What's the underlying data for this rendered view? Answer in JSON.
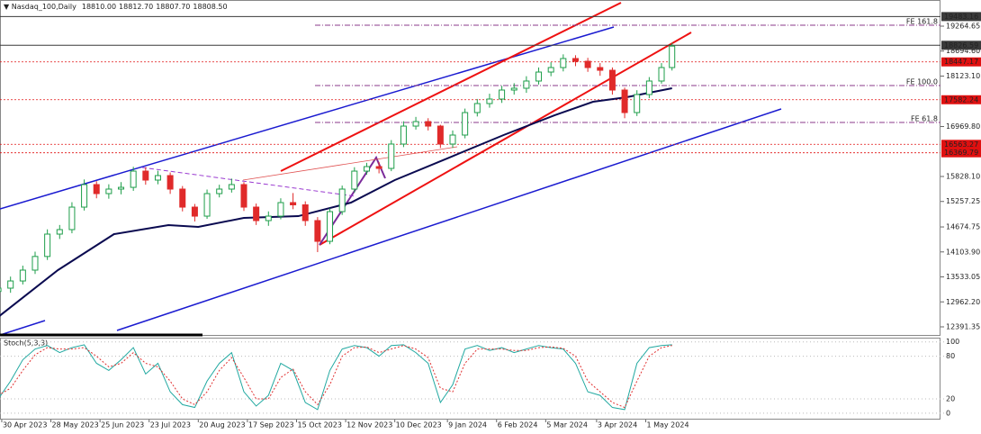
{
  "chart_data": {
    "type": "candlestick",
    "title": "Nasdaq_100,Daily",
    "last_bar": {
      "values": [
        18810,
        18812.7,
        18807.7,
        18808.5
      ],
      "value_labels": [
        "18810.00",
        "18812.70",
        "18807.70",
        "18808.50"
      ]
    },
    "x": [
      "2023-04-28",
      "2023-05-05",
      "2023-05-12",
      "2023-05-19",
      "2023-05-26",
      "2023-06-02",
      "2023-06-09",
      "2023-06-16",
      "2023-06-23",
      "2023-06-30",
      "2023-07-07",
      "2023-07-14",
      "2023-07-21",
      "2023-07-28",
      "2023-08-04",
      "2023-08-11",
      "2023-08-18",
      "2023-08-25",
      "2023-09-01",
      "2023-09-08",
      "2023-09-15",
      "2023-09-22",
      "2023-09-29",
      "2023-10-06",
      "2023-10-13",
      "2023-10-20",
      "2023-10-27",
      "2023-11-03",
      "2023-11-10",
      "2023-11-17",
      "2023-11-24",
      "2023-12-01",
      "2023-12-08",
      "2023-12-15",
      "2023-12-22",
      "2023-12-29",
      "2024-01-05",
      "2024-01-12",
      "2024-01-19",
      "2024-01-26",
      "2024-02-02",
      "2024-02-09",
      "2024-02-16",
      "2024-02-23",
      "2024-03-01",
      "2024-03-08",
      "2024-03-15",
      "2024-03-22",
      "2024-03-29",
      "2024-04-05",
      "2024-04-12",
      "2024-04-19",
      "2024-04-26",
      "2024-05-03",
      "2024-05-10",
      "2024-05-16"
    ],
    "open": [
      13200,
      13276,
      13440,
      13688,
      14000,
      14511,
      14614,
      15128,
      15643,
      15437,
      15540,
      15580,
      15951,
      15746,
      15849,
      15540,
      15128,
      14922,
      15437,
      15540,
      15643,
      15128,
      14820,
      14922,
      15231,
      15180,
      14820,
      14346,
      15025,
      15540,
      15951,
      16054,
      16013,
      16569,
      16980,
      17083,
      16980,
      16569,
      16775,
      17289,
      17495,
      17598,
      17804,
      17845,
      18010,
      18215,
      18318,
      18524,
      18462,
      18318,
      18256,
      17804,
      17289,
      17701,
      18010,
      18318
    ],
    "high": [
      13380,
      13540,
      13790,
      14110,
      14620,
      14720,
      15240,
      15760,
      15720,
      15650,
      15700,
      16050,
      16040,
      15960,
      15920,
      15610,
      15200,
      15530,
      15640,
      15780,
      15700,
      15210,
      15030,
      15330,
      15450,
      15260,
      14900,
      15100,
      15620,
      16040,
      16140,
      16160,
      16660,
      17090,
      17190,
      17160,
      17010,
      16880,
      17380,
      17600,
      17720,
      17900,
      17960,
      18120,
      18320,
      18440,
      18620,
      18600,
      18540,
      18420,
      18320,
      17860,
      17800,
      18100,
      18420,
      18880
    ],
    "low": [
      13080,
      13170,
      13360,
      13600,
      13920,
      14400,
      14530,
      15050,
      15330,
      15320,
      15420,
      15500,
      15640,
      15650,
      15430,
      15030,
      14800,
      14860,
      15350,
      15460,
      15040,
      14720,
      14700,
      14850,
      15080,
      14700,
      14100,
      14280,
      14950,
      15460,
      15870,
      15900,
      15950,
      16500,
      16900,
      16880,
      16480,
      16480,
      16700,
      17200,
      17400,
      17510,
      17700,
      17740,
      17930,
      18120,
      18230,
      18350,
      18220,
      18130,
      17700,
      17160,
      17210,
      17620,
      17950,
      18250
    ],
    "close": [
      13276,
      13440,
      13688,
      14000,
      14511,
      14614,
      15128,
      15643,
      15437,
      15540,
      15580,
      15951,
      15746,
      15849,
      15540,
      15128,
      14922,
      15437,
      15540,
      15643,
      15128,
      14820,
      14922,
      15231,
      15180,
      14820,
      14346,
      15025,
      15540,
      15951,
      16054,
      16013,
      16569,
      16980,
      17083,
      16980,
      16569,
      16775,
      17289,
      17495,
      17598,
      17804,
      17845,
      18010,
      18215,
      18318,
      18524,
      18462,
      18318,
      18256,
      17804,
      17289,
      17701,
      18010,
      18318,
      18808.5
    ],
    "up_color": "#1e9e4a",
    "down_color": "#e02a2a",
    "xlim": [
      "2023-04-29",
      "2024-10-16"
    ],
    "xticks": [
      {
        "value": "2023-04-30",
        "label": "30 Apr 2023"
      },
      {
        "value": "2023-05-28",
        "label": "28 May 2023"
      },
      {
        "value": "2023-06-25",
        "label": "25 Jun 2023"
      },
      {
        "value": "2023-07-23",
        "label": "23 Jul 2023"
      },
      {
        "value": "2023-08-20",
        "label": "20 Aug 2023"
      },
      {
        "value": "2023-09-17",
        "label": "17 Sep 2023"
      },
      {
        "value": "2023-10-15",
        "label": "15 Oct 2023"
      },
      {
        "value": "2023-11-12",
        "label": "12 Nov 2023"
      },
      {
        "value": "2023-12-10",
        "label": "10 Dec 2023"
      },
      {
        "value": "2024-01-09",
        "label": "9 Jan 2024"
      },
      {
        "value": "2024-02-06",
        "label": "6 Feb 2024"
      },
      {
        "value": "2024-03-05",
        "label": "5 Mar 2024"
      },
      {
        "value": "2024-04-03",
        "label": "3 Apr 2024"
      },
      {
        "value": "2024-05-01",
        "label": "1 May 2024"
      }
    ],
    "ylim": [
      12206,
      19862
    ],
    "yticks": [
      {
        "value": 19264.65,
        "label": "19264.65"
      },
      {
        "value": 18694.6,
        "label": "18694.60"
      },
      {
        "value": 18123.1,
        "label": "18123.10"
      },
      {
        "value": 16969.8,
        "label": "16969.80"
      },
      {
        "value": 15828.1,
        "label": "15828.10"
      },
      {
        "value": 15257.25,
        "label": "15257.25"
      },
      {
        "value": 14674.75,
        "label": "14674.75"
      },
      {
        "value": 14103.9,
        "label": "14103.90"
      },
      {
        "value": 13533.05,
        "label": "13533.05"
      },
      {
        "value": 12962.2,
        "label": "12962.20"
      },
      {
        "value": 12391.35,
        "label": "12391.35"
      }
    ],
    "levels": [
      {
        "value": 19483.16,
        "color": "#3a3a3a",
        "line": "solid"
      },
      {
        "value": 18826.59,
        "color": "#3a3a3a",
        "line": "solid"
      },
      {
        "value": 18447.17,
        "color": "#e01010",
        "line": "dotted"
      },
      {
        "value": 17582.24,
        "color": "#e01010",
        "line": "dotted"
      },
      {
        "value": 16563.27,
        "color": "#e01010",
        "line": "dotted"
      },
      {
        "value": 16369.79,
        "color": "#e01010",
        "line": "dotted"
      }
    ],
    "fibo_color": "#8b3a8b",
    "fibo_levels": [
      {
        "value": 19285,
        "label": "FE 161.8"
      },
      {
        "value": 17907,
        "label": "FE 100.0"
      },
      {
        "value": 17063,
        "label": "FE 61.8"
      }
    ],
    "ma": {
      "color": "#0a0a50",
      "x": [
        "2023-04-28",
        "2023-06-01",
        "2023-07-03",
        "2023-08-03",
        "2023-08-20",
        "2023-09-15",
        "2023-10-16",
        "2023-11-15",
        "2023-12-10",
        "2024-01-10",
        "2024-02-10",
        "2024-03-10",
        "2024-04-01",
        "2024-04-20",
        "2024-05-16"
      ],
      "values": [
        12618,
        13688,
        14511,
        14717,
        14676,
        14881,
        14922,
        15231,
        15746,
        16260,
        16775,
        17227,
        17536,
        17639,
        17845
      ]
    },
    "indicator": {
      "title": "Stoch(5,3,3)",
      "ylim": [
        -9,
        106
      ],
      "yticks": [
        0,
        20,
        80,
        100
      ],
      "series": [
        {
          "color": "#20a8a0",
          "dash": false,
          "values": [
            20,
            45,
            75,
            90,
            95,
            85,
            92,
            96,
            70,
            60,
            75,
            92,
            55,
            70,
            30,
            12,
            8,
            45,
            70,
            85,
            30,
            10,
            25,
            70,
            60,
            15,
            5,
            60,
            90,
            95,
            92,
            80,
            95,
            96,
            85,
            70,
            15,
            40,
            90,
            95,
            88,
            92,
            85,
            90,
            95,
            92,
            90,
            70,
            30,
            25,
            8,
            5,
            70,
            92,
            95,
            96
          ]
        },
        {
          "color": "#e03030",
          "dash": true,
          "values": [
            25,
            35,
            60,
            82,
            92,
            90,
            90,
            92,
            80,
            65,
            70,
            85,
            70,
            65,
            45,
            20,
            12,
            30,
            60,
            78,
            50,
            20,
            20,
            50,
            62,
            30,
            12,
            40,
            80,
            92,
            93,
            85,
            90,
            95,
            90,
            78,
            35,
            30,
            70,
            90,
            90,
            90,
            88,
            88,
            92,
            93,
            91,
            80,
            45,
            30,
            15,
            8,
            45,
            80,
            92,
            95
          ]
        }
      ]
    }
  }
}
